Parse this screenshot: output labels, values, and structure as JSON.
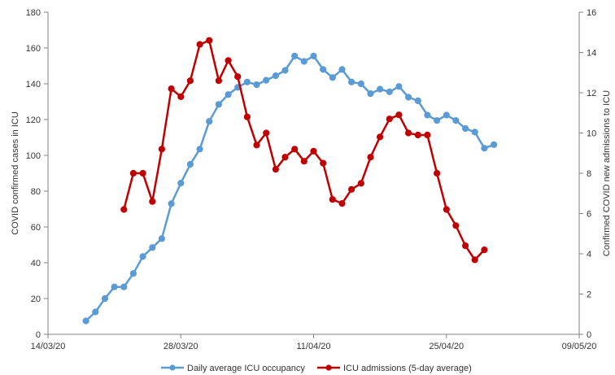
{
  "chart_data": {
    "type": "line",
    "x_start": "2020-03-14",
    "x_end": "2020-05-09",
    "x_tick_labels": [
      "14/03/20",
      "28/03/20",
      "11/04/20",
      "25/04/20",
      "09/05/20"
    ],
    "ylabel_left": "COVID confirmed cases in ICU",
    "ylabel_right": "Confirmed COVID new admissions to ICU",
    "ylim_left": [
      0,
      180
    ],
    "yticks_left": [
      0,
      20,
      40,
      60,
      80,
      100,
      120,
      140,
      160,
      180
    ],
    "ylim_right": [
      0,
      16
    ],
    "yticks_right": [
      0,
      2,
      4,
      6,
      8,
      10,
      12,
      14,
      16
    ],
    "grid": false,
    "legend_position": "bottom",
    "series": [
      {
        "name": "Daily average ICU occupancy",
        "axis": "left",
        "color": "#5B9BD5",
        "x": [
          "2020-03-18",
          "2020-03-19",
          "2020-03-20",
          "2020-03-21",
          "2020-03-22",
          "2020-03-23",
          "2020-03-24",
          "2020-03-25",
          "2020-03-26",
          "2020-03-27",
          "2020-03-28",
          "2020-03-29",
          "2020-03-30",
          "2020-03-31",
          "2020-04-01",
          "2020-04-02",
          "2020-04-03",
          "2020-04-04",
          "2020-04-05",
          "2020-04-06",
          "2020-04-07",
          "2020-04-08",
          "2020-04-09",
          "2020-04-10",
          "2020-04-11",
          "2020-04-12",
          "2020-04-13",
          "2020-04-14",
          "2020-04-15",
          "2020-04-16",
          "2020-04-17",
          "2020-04-18",
          "2020-04-19",
          "2020-04-20",
          "2020-04-21",
          "2020-04-22",
          "2020-04-23",
          "2020-04-24",
          "2020-04-25",
          "2020-04-26",
          "2020-04-27",
          "2020-04-28",
          "2020-04-29",
          "2020-04-30"
        ],
        "values": [
          7.5,
          12.5,
          20,
          26.5,
          26.5,
          34,
          43.5,
          48.5,
          53.5,
          73,
          84.5,
          95,
          103.5,
          119,
          128.5,
          134,
          138,
          141,
          139.5,
          142,
          144.5,
          147.5,
          155.5,
          152.5,
          155.5,
          148,
          143.5,
          148,
          141,
          140,
          134.5,
          137,
          135.5,
          138.5,
          132.5,
          130.5,
          122.5,
          119.5,
          122.5,
          119.5,
          115,
          113,
          104,
          106
        ]
      },
      {
        "name": "ICU admissions (5-day average)",
        "axis": "right",
        "color": "#C00000",
        "x": [
          "2020-03-22",
          "2020-03-23",
          "2020-03-24",
          "2020-03-25",
          "2020-03-26",
          "2020-03-27",
          "2020-03-28",
          "2020-03-29",
          "2020-03-30",
          "2020-03-31",
          "2020-04-01",
          "2020-04-02",
          "2020-04-03",
          "2020-04-04",
          "2020-04-05",
          "2020-04-06",
          "2020-04-07",
          "2020-04-08",
          "2020-04-09",
          "2020-04-10",
          "2020-04-11",
          "2020-04-12",
          "2020-04-13",
          "2020-04-14",
          "2020-04-15",
          "2020-04-16",
          "2020-04-17",
          "2020-04-18",
          "2020-04-19",
          "2020-04-20",
          "2020-04-21",
          "2020-04-22",
          "2020-04-23",
          "2020-04-24",
          "2020-04-25",
          "2020-04-26",
          "2020-04-27",
          "2020-04-28",
          "2020-04-29"
        ],
        "values": [
          6.2,
          8.0,
          8.0,
          6.6,
          9.2,
          12.2,
          11.8,
          12.6,
          14.4,
          14.6,
          12.6,
          13.6,
          12.8,
          10.8,
          9.4,
          10.0,
          8.2,
          8.8,
          9.2,
          8.6,
          9.1,
          8.5,
          6.7,
          6.5,
          7.2,
          7.5,
          8.8,
          9.8,
          10.7,
          10.9,
          10.0,
          9.9,
          9.9,
          8.0,
          6.2,
          5.4,
          4.4,
          3.7,
          4.2
        ]
      }
    ]
  }
}
